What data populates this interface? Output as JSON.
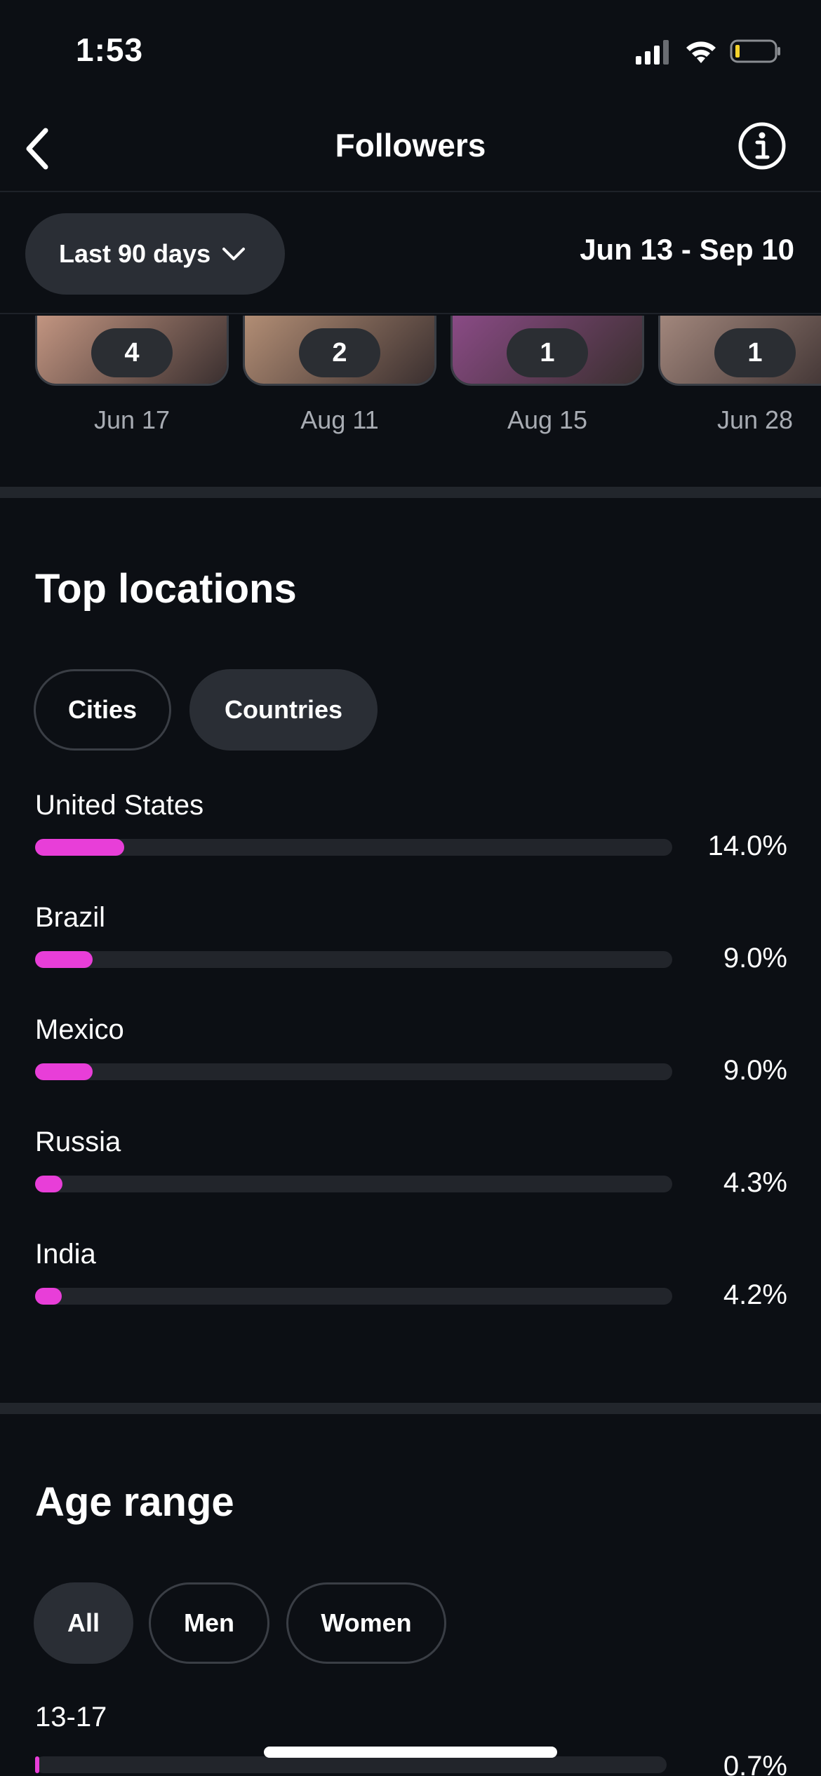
{
  "status": {
    "time": "1:53"
  },
  "header": {
    "title": "Followers"
  },
  "filter": {
    "period_label": "Last 90 days",
    "date_range": "Jun 13 - Sep 10"
  },
  "thumbnails": [
    {
      "count": "4",
      "date": "Jun 17",
      "color": "#c99a85"
    },
    {
      "count": "2",
      "date": "Aug 11",
      "color": "#b89278"
    },
    {
      "count": "1",
      "date": "Aug 15",
      "color": "#8e4c8a"
    },
    {
      "count": "1",
      "date": "Jun 28",
      "color": "#a78b80"
    }
  ],
  "top_locations": {
    "title": "Top locations",
    "tabs": [
      "Cities",
      "Countries"
    ],
    "active_tab": "Countries",
    "items": [
      {
        "name": "United States",
        "value": "14.0%",
        "fraction": 0.14
      },
      {
        "name": "Brazil",
        "value": "9.0%",
        "fraction": 0.09
      },
      {
        "name": "Mexico",
        "value": "9.0%",
        "fraction": 0.09
      },
      {
        "name": "Russia",
        "value": "4.3%",
        "fraction": 0.043
      },
      {
        "name": "India",
        "value": "4.2%",
        "fraction": 0.042
      }
    ]
  },
  "age_range": {
    "title": "Age range",
    "tabs": [
      "All",
      "Men",
      "Women"
    ],
    "active_tab": "All",
    "items": [
      {
        "name": "13-17",
        "value": "0.7%",
        "fraction": 0.007
      }
    ]
  },
  "colors": {
    "accent": "#e83ed8",
    "background": "#0c0f14"
  }
}
